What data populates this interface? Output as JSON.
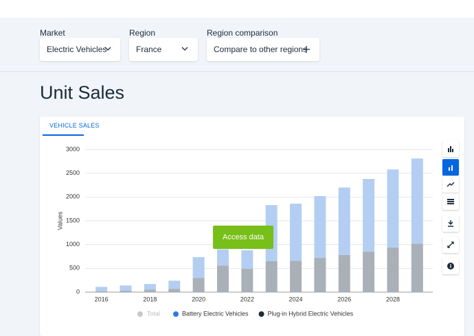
{
  "filters": [
    {
      "label": "Market",
      "value": "Electric Vehicles"
    },
    {
      "label": "Region",
      "value": "France"
    },
    {
      "label": "Region comparison",
      "value": "Compare to other regions"
    }
  ],
  "title": "Unit Sales",
  "tab": "VEHICLE SALES",
  "chart_data": {
    "type": "bar",
    "stacked": true,
    "y_label": "Values",
    "button": "Access data",
    "categories": [
      "2016",
      null,
      "2018",
      null,
      "2020",
      null,
      "2022",
      null,
      "2024",
      null,
      "2026",
      null,
      "2028",
      null
    ],
    "total": {
      "name": "Total",
      "color": "#c8c8c8"
    },
    "series": [
      {
        "name": "Plug-in Hybrid Electric Vehicles",
        "color": "#a9b0b8",
        "legend_color": "#1c2b3a",
        "values": [
          20,
          30,
          50,
          70,
          300,
          560,
          490,
          650,
          660,
          720,
          780,
          850,
          940,
          1020
        ]
      },
      {
        "name": "Battery Electric Vehicles",
        "color": "#b3cef2",
        "legend_color": "#2d7ae6",
        "values": [
          90,
          110,
          120,
          170,
          435,
          340,
          390,
          1180,
          1200,
          1300,
          1420,
          1530,
          1640,
          1790
        ]
      }
    ],
    "legend_order": [
      1,
      0
    ],
    "ylim": [
      0,
      3000
    ],
    "yticks": [
      0,
      500,
      1000,
      1500,
      2000,
      2500,
      3000
    ],
    "grid": true
  }
}
